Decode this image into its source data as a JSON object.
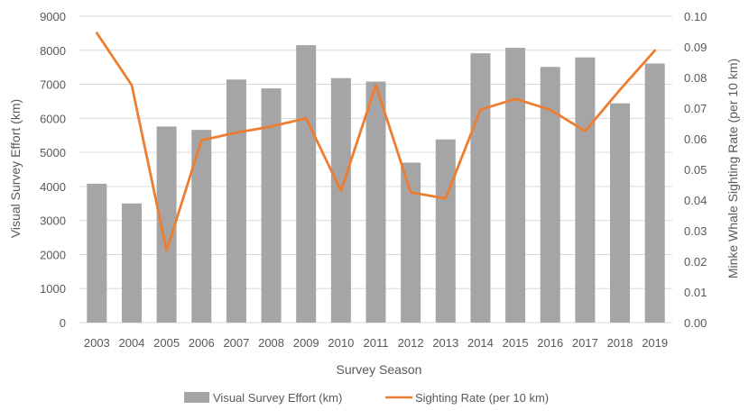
{
  "chart_data": {
    "type": "bar+line",
    "categories": [
      "2003",
      "2004",
      "2005",
      "2006",
      "2007",
      "2008",
      "2009",
      "2010",
      "2011",
      "2012",
      "2013",
      "2014",
      "2015",
      "2016",
      "2017",
      "2018",
      "2019"
    ],
    "series": [
      {
        "name": "Visual Survey Effort (km)",
        "type": "bar",
        "axis": "left",
        "color": "#a5a5a5",
        "values": [
          4080,
          3500,
          5760,
          5660,
          7140,
          6880,
          8150,
          7180,
          7080,
          4700,
          5380,
          7910,
          8070,
          7510,
          7790,
          6440,
          7610
        ]
      },
      {
        "name": "Sighting Rate (per 10 km)",
        "type": "line",
        "axis": "right",
        "color": "#ed7d31",
        "values": [
          0.0945,
          0.0775,
          0.0235,
          0.0595,
          0.062,
          0.064,
          0.0667,
          0.043,
          0.0775,
          0.0425,
          0.0405,
          0.0695,
          0.073,
          0.0695,
          0.0625,
          0.076,
          0.0888
        ]
      }
    ],
    "xlabel": "Survey Season",
    "ylabel_left": "Visual Survey Effort (km)",
    "ylabel_right": "Minke Whale Sighting Rate (per 10 km)",
    "ylim_left": [
      0,
      9000
    ],
    "ylim_right": [
      0,
      0.1
    ],
    "yticks_left": [
      "0",
      "1000",
      "2000",
      "3000",
      "4000",
      "5000",
      "6000",
      "7000",
      "8000",
      "9000"
    ],
    "yticks_right": [
      "0.00",
      "0.01",
      "0.02",
      "0.03",
      "0.04",
      "0.05",
      "0.06",
      "0.07",
      "0.08",
      "0.09",
      "0.10"
    ],
    "grid": true,
    "legend_position": "bottom-center",
    "gridline_color": "#d9d9d9"
  }
}
